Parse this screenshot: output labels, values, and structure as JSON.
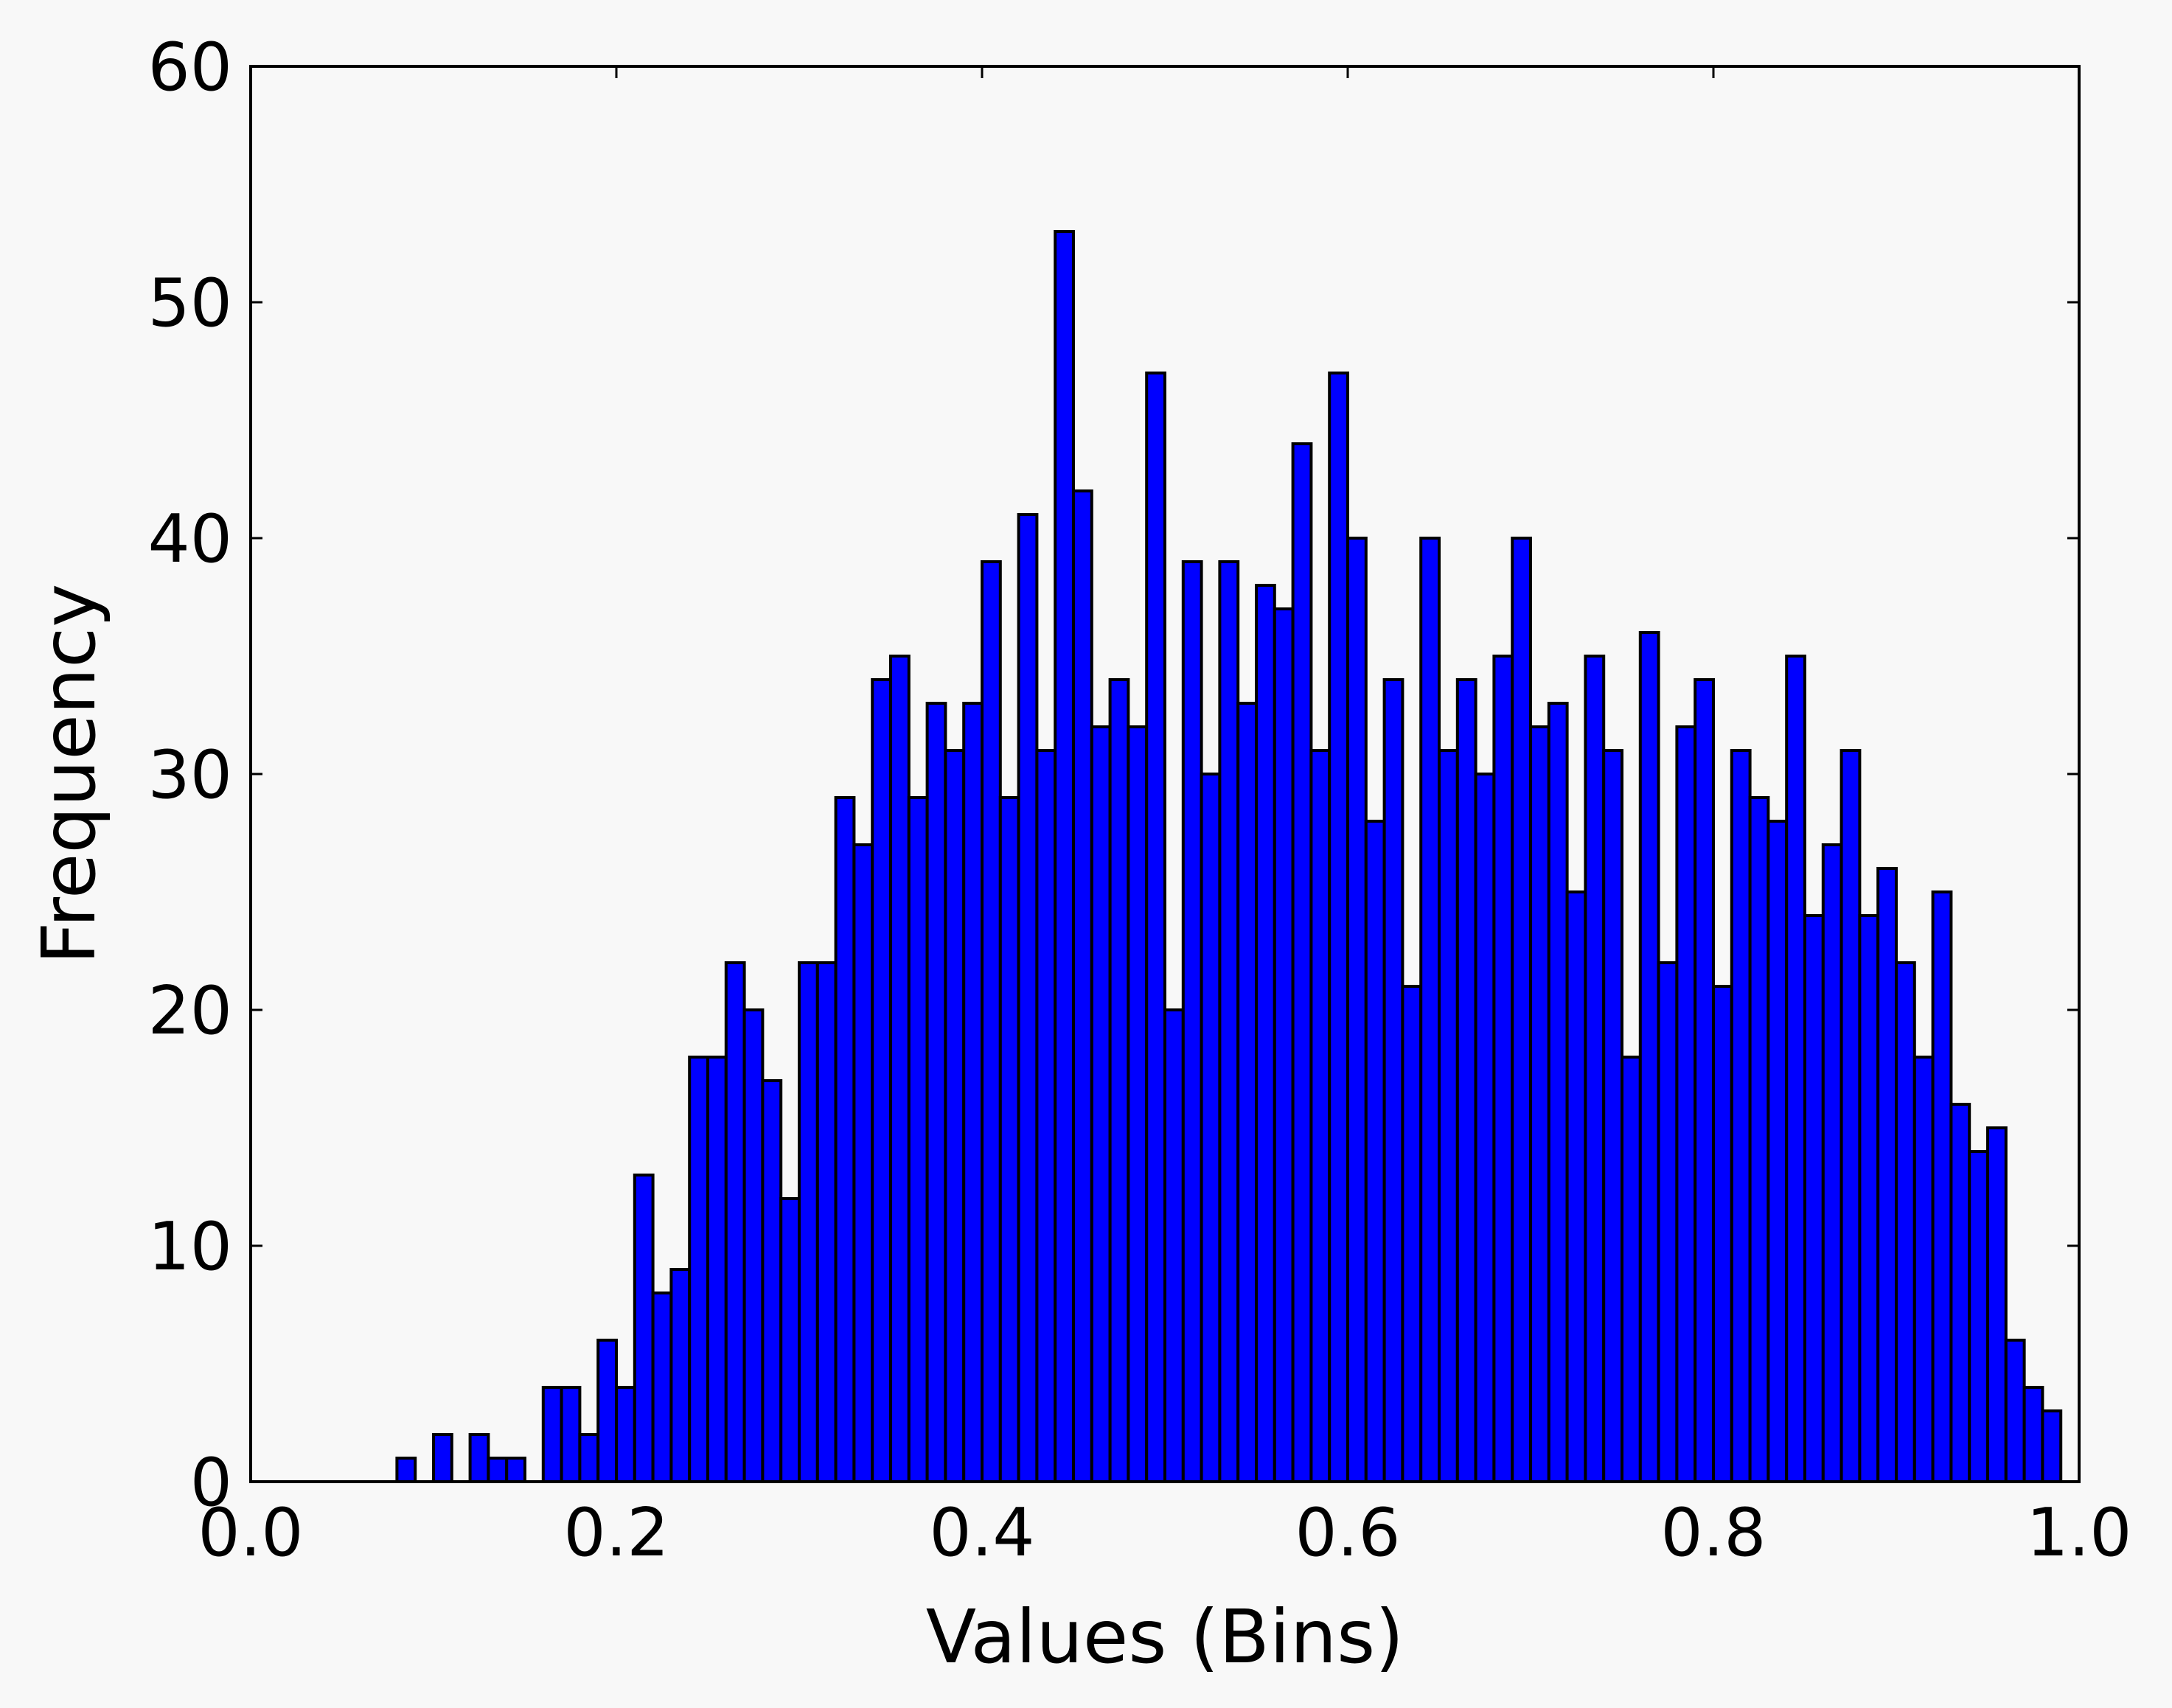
{
  "chart_data": {
    "type": "bar",
    "xlabel": "Values (Bins)",
    "ylabel": "Frequency",
    "xlim": [
      0.0,
      1.0
    ],
    "ylim": [
      0,
      60
    ],
    "grid": false,
    "x_ticks": [
      "0.0",
      "0.2",
      "0.4",
      "0.6",
      "0.8",
      "1.0"
    ],
    "y_ticks": [
      "0",
      "10",
      "20",
      "30",
      "40",
      "50",
      "60"
    ],
    "bar_color": "#0000ff",
    "edge_color": "#000000",
    "bin_width": 0.01,
    "bin_start": 0.0,
    "values": [
      0,
      0,
      0,
      0,
      0,
      0,
      0,
      0,
      1,
      0,
      2,
      0,
      2,
      1,
      1,
      0,
      4,
      4,
      2,
      6,
      4,
      13,
      8,
      9,
      18,
      18,
      22,
      20,
      17,
      12,
      22,
      22,
      29,
      27,
      34,
      35,
      29,
      33,
      31,
      33,
      39,
      29,
      41,
      31,
      53,
      42,
      32,
      34,
      32,
      47,
      20,
      39,
      30,
      39,
      33,
      38,
      37,
      44,
      31,
      47,
      40,
      28,
      34,
      21,
      40,
      31,
      34,
      30,
      35,
      40,
      32,
      33,
      25,
      35,
      31,
      18,
      36,
      22,
      32,
      34,
      21,
      31,
      29,
      28,
      35,
      24,
      27,
      31,
      24,
      26,
      22,
      18,
      25,
      16,
      14,
      15,
      6,
      4,
      3,
      0
    ]
  }
}
